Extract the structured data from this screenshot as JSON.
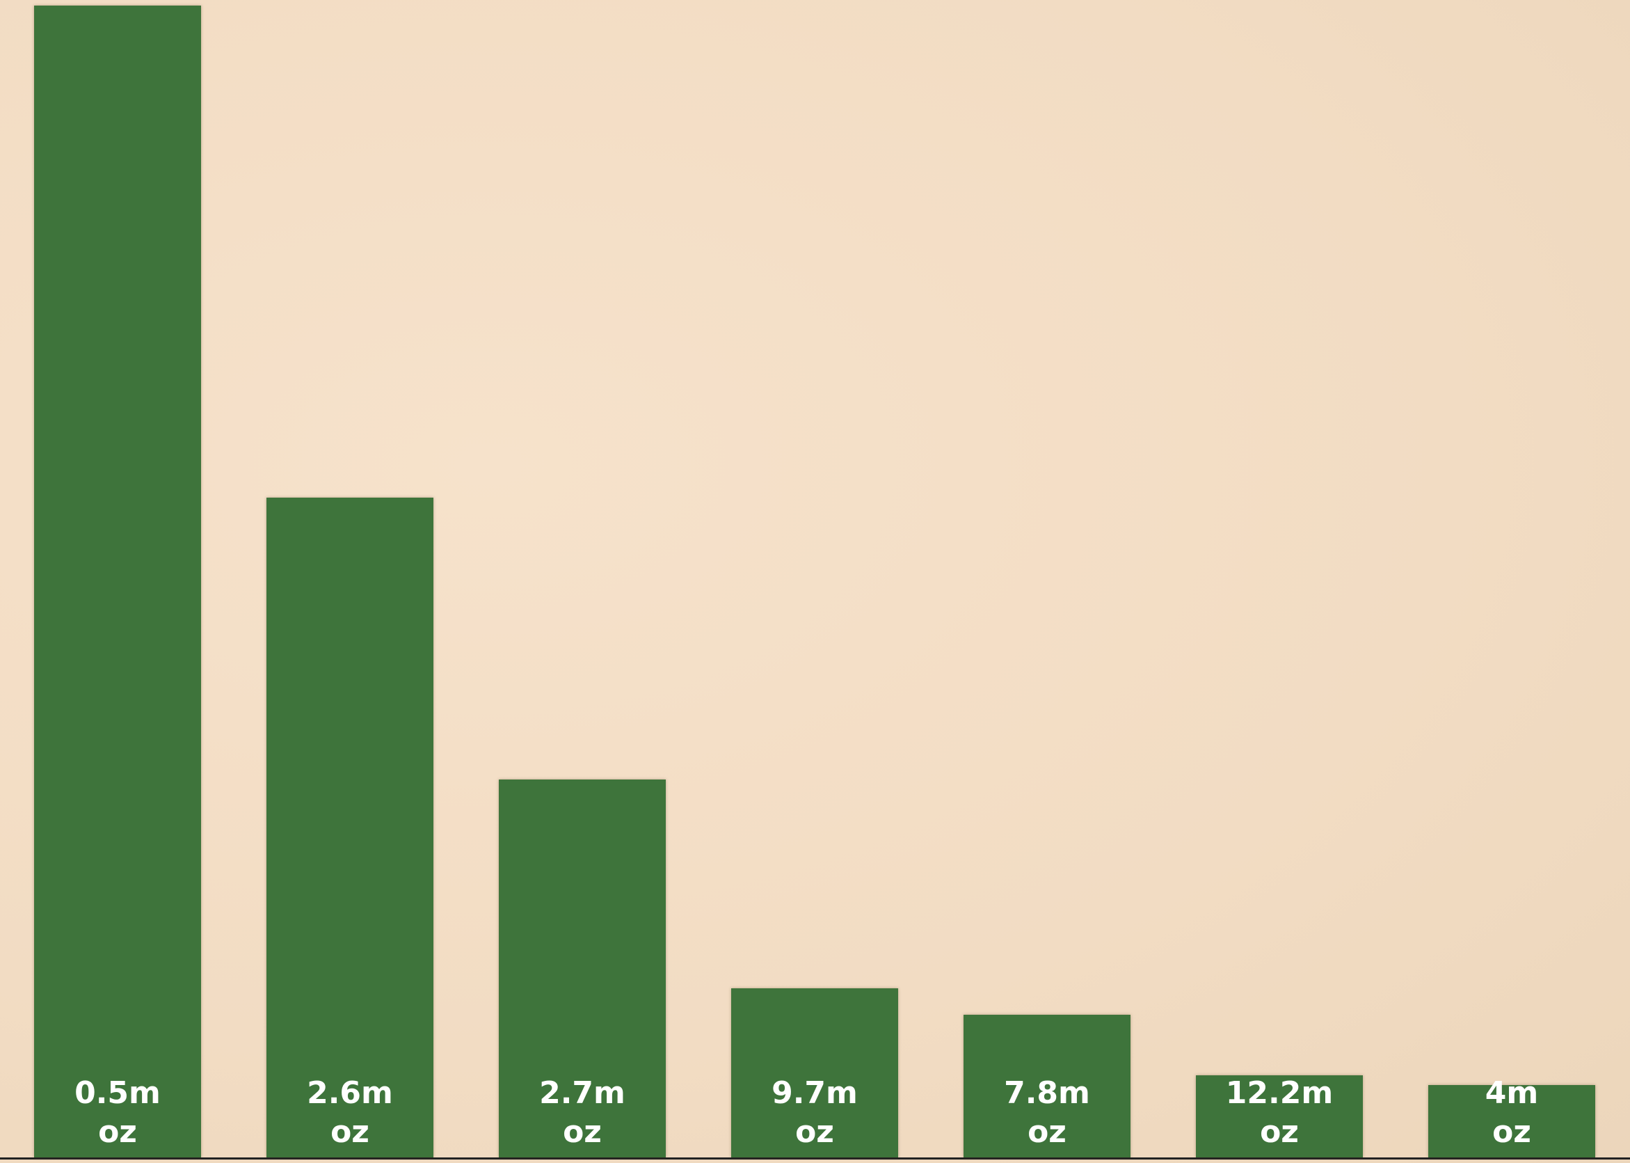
{
  "chart_data": {
    "type": "bar",
    "categories": [
      "0.5m oz",
      "2.6m oz",
      "2.7m oz",
      "9.7m oz",
      "7.8m oz",
      "12.2m oz",
      "4m oz"
    ],
    "values": [
      100,
      57.3,
      32.8,
      14.7,
      12.4,
      7.1,
      6.3
    ],
    "color": "#3e743b",
    "ylim": [
      0,
      100
    ]
  }
}
